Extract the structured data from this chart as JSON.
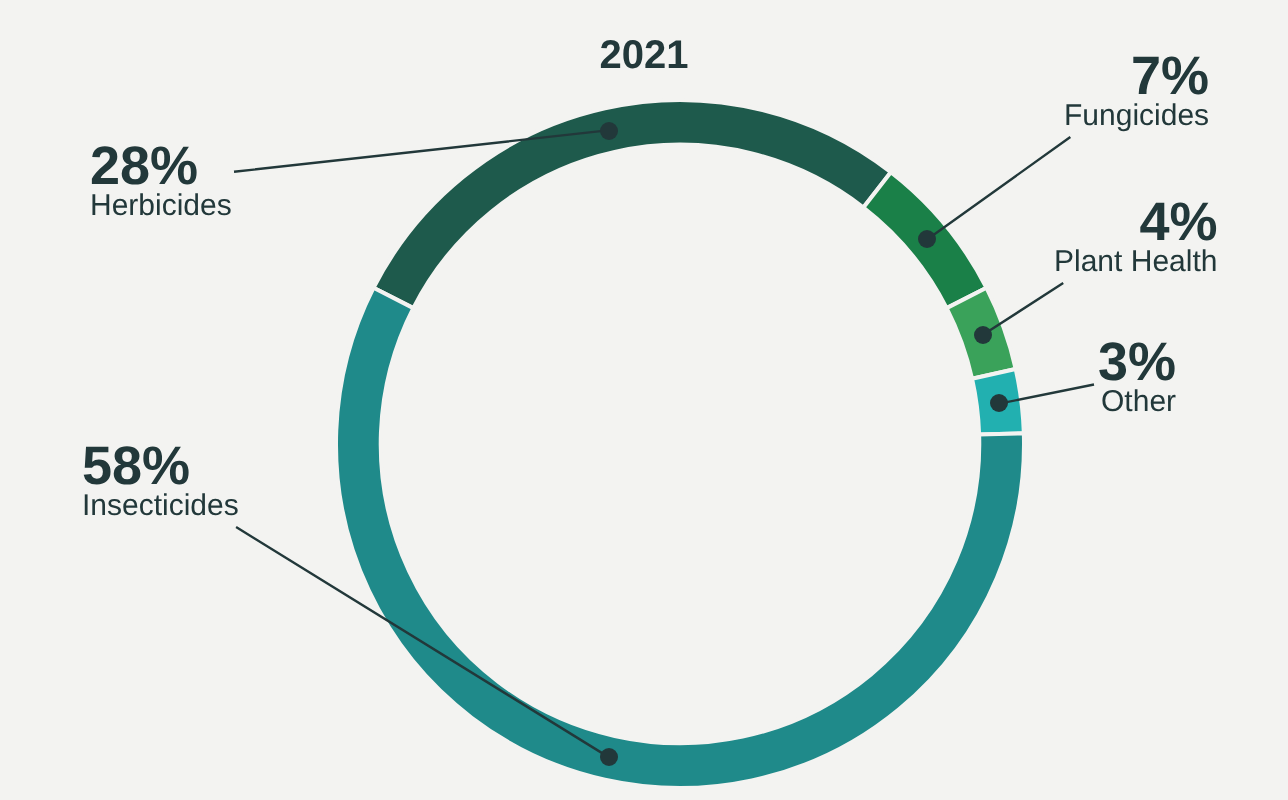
{
  "chart_data": {
    "type": "donut",
    "title": "2021",
    "categories": [
      "Herbicides",
      "Fungicides",
      "Plant Health",
      "Other",
      "Insecticides"
    ],
    "values": [
      28,
      7,
      4,
      3,
      58
    ],
    "value_labels": [
      "28%",
      "7%",
      "4%",
      "3%",
      "58%"
    ],
    "colors": [
      "#1e5a4c",
      "#1a8048",
      "#3aa25a",
      "#22b0b0",
      "#1f8a8a"
    ],
    "legend": false
  }
}
